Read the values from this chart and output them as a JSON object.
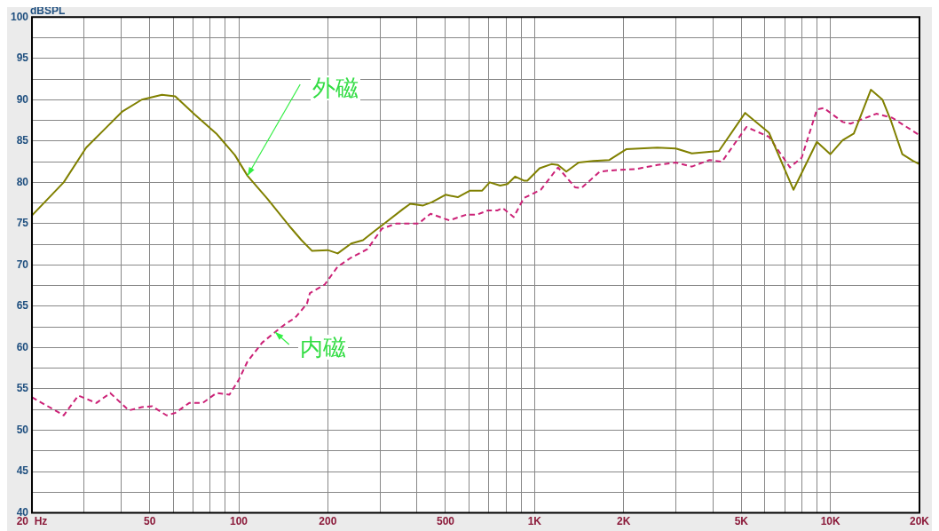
{
  "chart_data": {
    "type": "line",
    "ylabel": "dBSPL",
    "log": "x",
    "grid": true,
    "marker": "none",
    "xlim": [
      20,
      20000
    ],
    "ylim": [
      40,
      100
    ],
    "xticks": [
      {
        "value": 20,
        "label": "20  Hz"
      },
      {
        "value": 30,
        "label": null
      },
      {
        "value": 40,
        "label": null
      },
      {
        "value": 50,
        "label": "50"
      },
      {
        "value": 60,
        "label": null
      },
      {
        "value": 70,
        "label": null
      },
      {
        "value": 80,
        "label": null
      },
      {
        "value": 90,
        "label": null
      },
      {
        "value": 100,
        "label": "100"
      },
      {
        "value": 200,
        "label": "200"
      },
      {
        "value": 300,
        "label": null
      },
      {
        "value": 400,
        "label": null
      },
      {
        "value": 500,
        "label": "500"
      },
      {
        "value": 600,
        "label": null
      },
      {
        "value": 700,
        "label": null
      },
      {
        "value": 800,
        "label": null
      },
      {
        "value": 900,
        "label": null
      },
      {
        "value": 1000,
        "label": "1K"
      },
      {
        "value": 2000,
        "label": "2K"
      },
      {
        "value": 3000,
        "label": null
      },
      {
        "value": 4000,
        "label": null
      },
      {
        "value": 5000,
        "label": "5K"
      },
      {
        "value": 6000,
        "label": null
      },
      {
        "value": 7000,
        "label": null
      },
      {
        "value": 8000,
        "label": null
      },
      {
        "value": 9000,
        "label": null
      },
      {
        "value": 10000,
        "label": "10K"
      },
      {
        "value": 20000,
        "label": "20K"
      }
    ],
    "yticks": [
      40,
      {
        "value": 42.5,
        "label": null
      },
      45,
      {
        "value": 47.5,
        "label": null
      },
      50,
      {
        "value": 52.5,
        "label": null
      },
      55,
      {
        "value": 57.5,
        "label": null
      },
      60,
      {
        "value": 62.5,
        "label": null
      },
      65,
      {
        "value": 67.5,
        "label": null
      },
      70,
      {
        "value": 72.5,
        "label": null
      },
      75,
      {
        "value": 77.5,
        "label": null
      },
      80,
      {
        "value": 82.5,
        "label": null
      },
      85,
      {
        "value": 87.5,
        "label": null
      },
      90,
      {
        "value": 92.5,
        "label": null
      },
      95,
      {
        "value": 97.5,
        "label": null
      },
      100
    ],
    "series": [
      {
        "name": "外磁",
        "color": "#808000",
        "line_style": "solid",
        "x": [
          20,
          25.6,
          30.5,
          35.6,
          40.5,
          47,
          55,
          61,
          71,
          84,
          97,
          107,
          125,
          150,
          163,
          177,
          200,
          216,
          240,
          263,
          285,
          305,
          360,
          380,
          420,
          450,
          500,
          550,
          605,
          665,
          705,
          765,
          810,
          860,
          920,
          945,
          1040,
          1140,
          1200,
          1280,
          1410,
          1580,
          1790,
          2040,
          2600,
          3000,
          3400,
          4200,
          5150,
          6200,
          7500,
          9000,
          10000,
          11000,
          12000,
          13700,
          15000,
          16000,
          17500,
          19000,
          20000
        ],
        "values": [
          76,
          80,
          84.2,
          86.6,
          88.6,
          90,
          90.6,
          90.4,
          88.2,
          85.9,
          83.3,
          80.8,
          78,
          74.5,
          73,
          71.7,
          71.8,
          71.4,
          72.6,
          73,
          74,
          74.8,
          76.8,
          77.4,
          77.2,
          77.6,
          78.5,
          78.2,
          79,
          79,
          80,
          79.6,
          79.8,
          80.7,
          80.2,
          80.2,
          81.7,
          82.2,
          82.1,
          81.3,
          82.4,
          82.6,
          82.7,
          84,
          84.2,
          84.1,
          83.5,
          83.8,
          88.4,
          86,
          79.1,
          84.9,
          83.4,
          85.1,
          85.9,
          91.2,
          90,
          87.5,
          83.4,
          82.6,
          82.2
        ]
      },
      {
        "name": "内磁",
        "color": "#cc2277",
        "line_style": "dashed",
        "x": [
          20,
          25.6,
          28.7,
          33,
          36.8,
          42.5,
          47,
          51,
          57,
          61,
          68,
          75.5,
          84,
          93,
          100,
          107,
          120,
          133,
          143,
          155,
          170,
          174,
          195,
          216,
          240,
          272,
          305,
          340,
          405,
          445,
          515,
          590,
          640,
          695,
          750,
          780,
          850,
          920,
          1050,
          1200,
          1370,
          1440,
          1660,
          1900,
          2200,
          2600,
          3000,
          3400,
          3900,
          4300,
          5200,
          6200,
          7300,
          8000,
          9000,
          9500,
          11000,
          11700,
          14300,
          16200,
          20000
        ],
        "values": [
          54,
          51.8,
          54.2,
          53.3,
          54.5,
          52.4,
          52.8,
          52.9,
          51.8,
          52.1,
          53.3,
          53.3,
          54.5,
          54.3,
          56.1,
          58.3,
          60.6,
          61.9,
          62.8,
          63.6,
          65.3,
          66.6,
          67.6,
          69.8,
          70.9,
          71.9,
          74.4,
          75,
          75,
          76.2,
          75.4,
          76.1,
          76.1,
          76.6,
          76.6,
          76.9,
          75.8,
          78.1,
          79.1,
          81.8,
          79.4,
          79.3,
          81.3,
          81.5,
          81.6,
          82.1,
          82.4,
          81.9,
          82.7,
          82.5,
          86.7,
          85.5,
          81.8,
          83,
          88.8,
          89,
          87.3,
          87.1,
          88.3,
          87.8,
          85.7
        ]
      }
    ]
  }
}
